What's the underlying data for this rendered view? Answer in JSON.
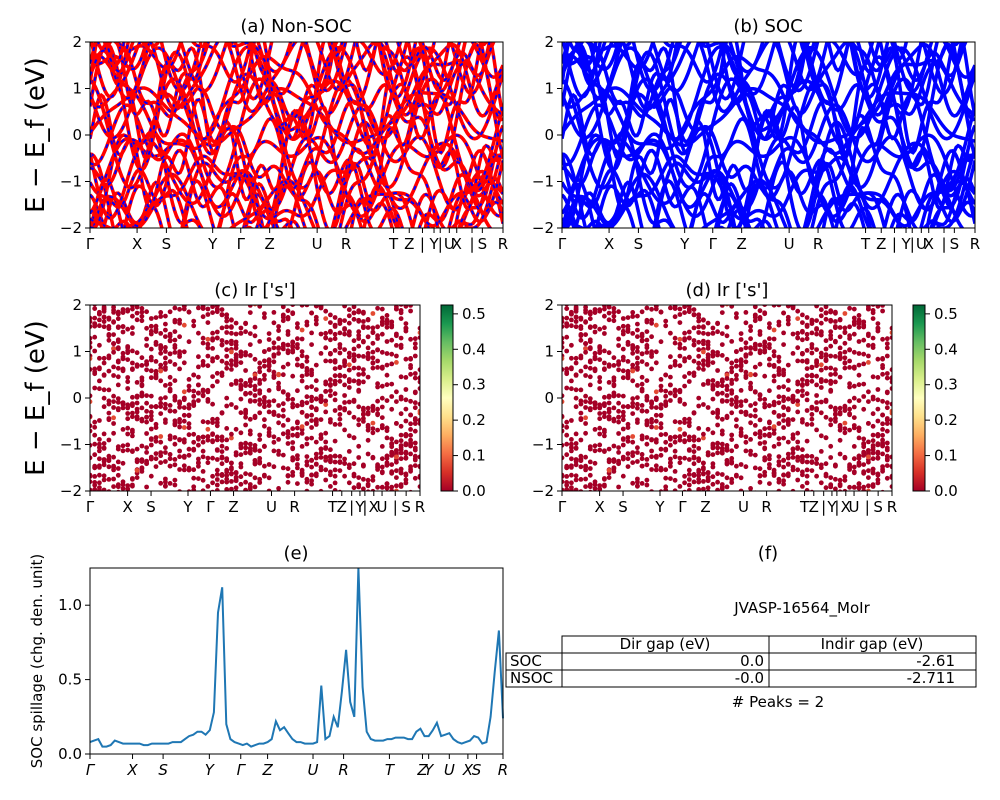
{
  "colors": {
    "nonsoc_red": "#ff0000",
    "nonsoc_blue": "#0000ff",
    "soc_blue": "#0000ff",
    "spillage_line": "#1f77b4",
    "scatter_low": "#a50026"
  },
  "chart_data": [
    {
      "id": "a",
      "type": "line",
      "title": "(a) Non-SOC",
      "ylabel": "E − E_f (eV)",
      "ylim": [
        -2,
        2
      ],
      "yticks": [
        "2",
        "1",
        "0",
        "−1",
        "−2"
      ],
      "kpath_labels": [
        "Γ",
        "X",
        "S",
        "Y",
        "Γ",
        "Z",
        "U",
        "R",
        "T",
        "Z",
        "|",
        "Y",
        "|",
        "U",
        "X",
        "|",
        "S",
        "R"
      ],
      "grid": false
    },
    {
      "id": "b",
      "type": "line",
      "title": "(b) SOC",
      "ylim": [
        -2,
        2
      ],
      "yticks": [
        "2",
        "1",
        "0",
        "−1",
        "−2"
      ],
      "kpath_labels": [
        "Γ",
        "X",
        "S",
        "Y",
        "Γ",
        "Z",
        "U",
        "R",
        "T",
        "Z",
        "|",
        "Y",
        "|",
        "U",
        "X",
        "|",
        "S",
        "R"
      ],
      "grid": false
    },
    {
      "id": "c",
      "type": "scatter",
      "title": "(c)  Ir ['s']",
      "ylabel": "E − E_f (eV)",
      "ylim": [
        -2,
        2
      ],
      "yticks": [
        "2",
        "1",
        "0",
        "−1",
        "−2"
      ],
      "kpath_labels": [
        "Γ",
        "X",
        "S",
        "Y",
        "Γ",
        "Z",
        "U",
        "R",
        "T",
        "Z",
        "|",
        "Y",
        "|",
        "X",
        "U",
        "|",
        "S",
        "R"
      ],
      "colorbar_ticks": [
        "0.5",
        "0.4",
        "0.3",
        "0.2",
        "0.1",
        "0.0"
      ],
      "colorbar_range": [
        0.0,
        0.525
      ],
      "colormap": "RdYlGn"
    },
    {
      "id": "d",
      "type": "scatter",
      "title": "(d) Ir ['s']",
      "ylim": [
        -2,
        2
      ],
      "yticks": [
        "2",
        "1",
        "0",
        "−1",
        "−2"
      ],
      "kpath_labels": [
        "Γ",
        "X",
        "S",
        "Y",
        "Γ",
        "Z",
        "U",
        "R",
        "T",
        "Z",
        "|",
        "Y",
        "|",
        "X",
        "U",
        "|",
        "S",
        "R"
      ],
      "colorbar_ticks": [
        "0.5",
        "0.4",
        "0.3",
        "0.2",
        "0.1",
        "0.0"
      ],
      "colorbar_range": [
        0.0,
        0.525
      ],
      "colormap": "RdYlGn"
    },
    {
      "id": "e",
      "type": "line",
      "title": "(e)",
      "ylabel": "SOC spillage (chg. den. unit)",
      "ylim": [
        0,
        1.25
      ],
      "yticks": [
        "0.0",
        "0.5",
        "1.0"
      ],
      "xtick_labels": [
        "Γ",
        "X",
        "S",
        "Y",
        "Γ",
        "Z",
        "U",
        "R",
        "T",
        "Z",
        "Y",
        "U",
        "X",
        "S",
        "R"
      ],
      "x": [
        0,
        1,
        2,
        3,
        4,
        5,
        6,
        7,
        8,
        9,
        10,
        11,
        12,
        13,
        14,
        15,
        16,
        17,
        18,
        19,
        20,
        21,
        22,
        23,
        24,
        25,
        26,
        27,
        28,
        29,
        30,
        31,
        32,
        33,
        34,
        35,
        36,
        37,
        38,
        39,
        40,
        41,
        42,
        43,
        44,
        45,
        46,
        47,
        48,
        49,
        50,
        51,
        52,
        53,
        54,
        55,
        56,
        57,
        58,
        59,
        60,
        61,
        62,
        63,
        64,
        65,
        66,
        67,
        68,
        69,
        70,
        71,
        72,
        73,
        74,
        75,
        76,
        77,
        78,
        79,
        80,
        81,
        82,
        83,
        84,
        85,
        86,
        87,
        88,
        89,
        90,
        91,
        92,
        93,
        94,
        95,
        96,
        97,
        98,
        99,
        100
      ],
      "values": [
        0.08,
        0.09,
        0.1,
        0.05,
        0.05,
        0.06,
        0.09,
        0.08,
        0.07,
        0.07,
        0.07,
        0.07,
        0.07,
        0.06,
        0.06,
        0.07,
        0.07,
        0.07,
        0.07,
        0.07,
        0.08,
        0.08,
        0.08,
        0.1,
        0.12,
        0.13,
        0.15,
        0.15,
        0.13,
        0.16,
        0.28,
        0.95,
        1.12,
        0.2,
        0.1,
        0.08,
        0.07,
        0.06,
        0.07,
        0.05,
        0.06,
        0.07,
        0.07,
        0.08,
        0.1,
        0.22,
        0.16,
        0.18,
        0.14,
        0.1,
        0.08,
        0.08,
        0.07,
        0.07,
        0.07,
        0.08,
        0.46,
        0.1,
        0.12,
        0.25,
        0.18,
        0.42,
        0.7,
        0.35,
        0.25,
        1.25,
        0.45,
        0.15,
        0.1,
        0.09,
        0.09,
        0.09,
        0.1,
        0.1,
        0.11,
        0.11,
        0.11,
        0.1,
        0.1,
        0.15,
        0.17,
        0.12,
        0.12,
        0.16,
        0.21,
        0.12,
        0.13,
        0.14,
        0.1,
        0.08,
        0.07,
        0.08,
        0.09,
        0.12,
        0.11,
        0.07,
        0.08,
        0.25,
        0.55,
        0.83,
        0.24
      ],
      "grid": false
    }
  ],
  "panel_f": {
    "title": "(f)",
    "material_id": "JVASP-16564_MoIr",
    "table": {
      "headers": [
        "Dir gap (eV)",
        "Indir gap (eV)"
      ],
      "rows": [
        {
          "label": "SOC",
          "dir": "0.0",
          "indir": "-2.61"
        },
        {
          "label": "NSOC",
          "dir": "-0.0",
          "indir": "-2.711"
        }
      ]
    },
    "peaks_text": "# Peaks = 2"
  }
}
